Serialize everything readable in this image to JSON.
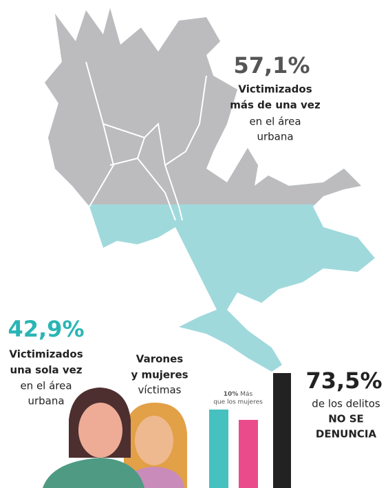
{
  "top_stat": {
    "value": "57,1%",
    "lines": [
      "Victimizados",
      "más de una vez",
      "en el área",
      "urbana"
    ]
  },
  "bottom_stat": {
    "value": "42,9%",
    "lines": [
      "Victimizados",
      "una sola vez",
      "en el área",
      "urbana"
    ]
  },
  "victims": {
    "lines": [
      "Varones",
      "y mujeres",
      "víctimas"
    ],
    "note": {
      "bold": "10%",
      "rest": [
        "Más",
        "que los mujeres"
      ]
    }
  },
  "report_stat": {
    "value": "73,5%",
    "lines": [
      "de los delitos",
      "NO SE",
      "DENUNCIA"
    ]
  }
}
